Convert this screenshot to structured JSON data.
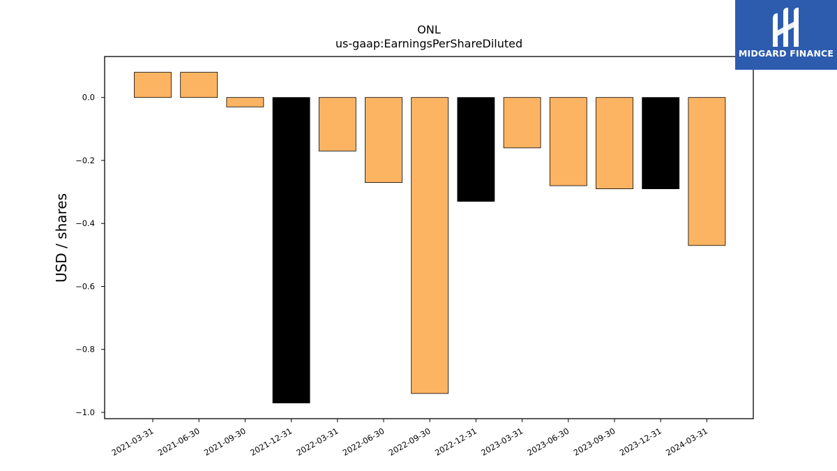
{
  "chart_data": {
    "type": "bar",
    "title": "ONL",
    "subtitle": "us-gaap:EarningsPerShareDiluted",
    "xlabel": "",
    "ylabel": "USD / shares",
    "categories": [
      "2021-03-31",
      "2021-06-30",
      "2021-09-30",
      "2021-12-31",
      "2022-03-31",
      "2022-06-30",
      "2022-09-30",
      "2022-12-31",
      "2023-03-31",
      "2023-06-30",
      "2023-09-30",
      "2023-12-31",
      "2024-03-31"
    ],
    "values": [
      0.08,
      0.08,
      -0.03,
      -0.97,
      -0.17,
      -0.27,
      -0.94,
      -0.33,
      -0.16,
      -0.28,
      -0.29,
      -0.29,
      -0.47
    ],
    "bar_colors": [
      "#fdb462",
      "#fdb462",
      "#fdb462",
      "#000000",
      "#fdb462",
      "#fdb462",
      "#fdb462",
      "#000000",
      "#fdb462",
      "#fdb462",
      "#fdb462",
      "#000000",
      "#fdb462"
    ],
    "yticks": [
      0.0,
      -0.2,
      -0.4,
      -0.6,
      -0.8,
      -1.0
    ],
    "ytick_labels": [
      "0.0",
      "−0.2",
      "−0.4",
      "−0.6",
      "−0.8",
      "−1.0"
    ],
    "ylim": [
      -1.02,
      0.13
    ],
    "grid": false,
    "legend": "none"
  },
  "logo": {
    "text": "MIDGARD FINANCE",
    "color": "#2d5cae"
  }
}
